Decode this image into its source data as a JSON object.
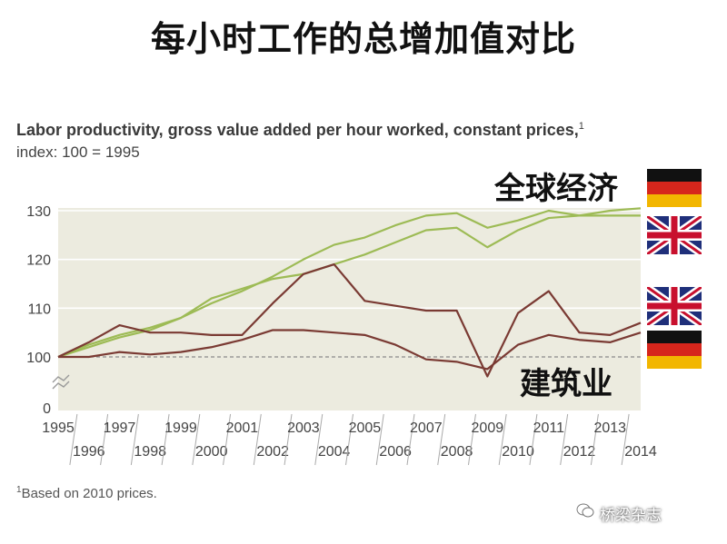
{
  "page_title": "每小时工作的总增加值对比",
  "subtitle_line1": "Labor productivity, gross value added per hour worked, constant prices,",
  "subtitle_sup": "1",
  "subtitle_line2": "index: 100 = 1995",
  "annotation_global": "全球经济",
  "annotation_construction": "建筑业",
  "footnote_sup": "1",
  "footnote_text": "Based on 2010 prices.",
  "watermark": "桥梁杂志",
  "flags": [
    "germany-flag",
    "uk-flag",
    "uk-flag",
    "germany-flag"
  ],
  "colors": {
    "plot_bg": "#ecebdf",
    "global_series": "#9dbb55",
    "construction_series": "#7a3a33",
    "baseline": "#8a8a8a"
  },
  "chart_data": {
    "type": "line",
    "x": [
      1995,
      1996,
      1997,
      1998,
      1999,
      2000,
      2001,
      2002,
      2003,
      2004,
      2005,
      2006,
      2007,
      2008,
      2009,
      2010,
      2011,
      2012,
      2013,
      2014
    ],
    "xlim": [
      1995,
      2014
    ],
    "y_ticks": [
      0,
      100,
      110,
      120,
      130
    ],
    "y_broken_axis": true,
    "series": [
      {
        "group": "global",
        "values": [
          100,
          102.5,
          104.5,
          106,
          108,
          111,
          113.5,
          116.5,
          120,
          123,
          124.5,
          127,
          129,
          129.5,
          126.5,
          128,
          130,
          129,
          130,
          130.5
        ]
      },
      {
        "group": "global",
        "values": [
          100,
          102,
          104,
          105.5,
          108,
          112,
          114,
          116,
          117,
          119,
          121,
          123.5,
          126,
          126.5,
          122.5,
          126,
          128.5,
          129,
          129,
          129
        ]
      },
      {
        "group": "construction",
        "values": [
          100,
          103,
          106.5,
          105,
          105,
          104.5,
          104.5,
          111,
          117,
          119,
          111.5,
          110.5,
          109.5,
          109.5,
          96,
          109,
          113.5,
          105,
          104.5,
          107
        ]
      },
      {
        "group": "construction",
        "values": [
          100,
          100,
          101,
          100.5,
          101,
          102,
          103.5,
          105.5,
          105.5,
          105,
          104.5,
          102.5,
          99.5,
          99,
          97.5,
          102.5,
          104.5,
          103.5,
          103,
          105
        ]
      }
    ]
  }
}
